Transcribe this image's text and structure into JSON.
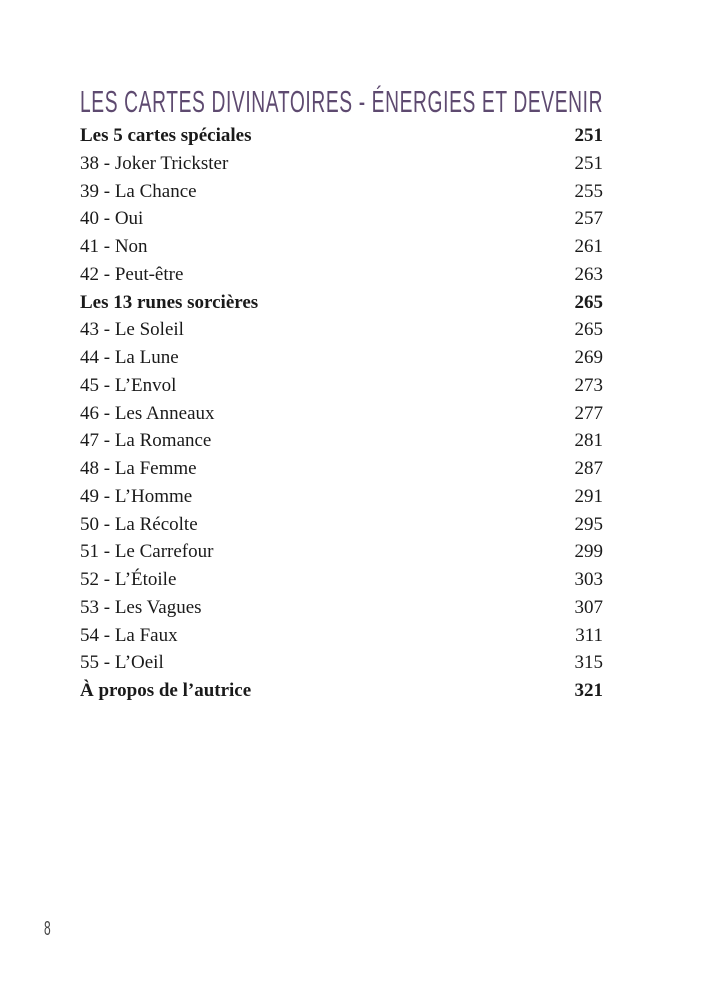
{
  "title": "Les cartes divinatoires - Énergies et devenir",
  "entries": [
    {
      "label": "Les 5 cartes spéciales",
      "page": "251",
      "bold": true
    },
    {
      "label": "38 - Joker Trickster",
      "page": "251"
    },
    {
      "label": "39 - La Chance",
      "page": "255"
    },
    {
      "label": "40 - Oui",
      "page": "257"
    },
    {
      "label": "41 - Non",
      "page": "261"
    },
    {
      "label": "42 - Peut-être",
      "page": "263"
    },
    {
      "label": "Les 13 runes sorcières",
      "page": "265",
      "bold": true
    },
    {
      "label": "43 - Le Soleil",
      "page": "265"
    },
    {
      "label": "44 - La Lune",
      "page": "269"
    },
    {
      "label": "45 - L’Envol",
      "page": "273"
    },
    {
      "label": "46 - Les Anneaux",
      "page": "277"
    },
    {
      "label": "47 - La Romance",
      "page": "281"
    },
    {
      "label": "48 - La Femme",
      "page": "287"
    },
    {
      "label": "49 - L’Homme",
      "page": "291"
    },
    {
      "label": "50 - La Récolte",
      "page": "295"
    },
    {
      "label": "51 - Le Carrefour",
      "page": "299"
    },
    {
      "label": "52 - L’Étoile",
      "page": "303"
    },
    {
      "label": "53 - Les Vagues",
      "page": "307"
    },
    {
      "label": "54 - La Faux",
      "page": "311"
    },
    {
      "label": "55 - L’Oeil",
      "page": "315"
    },
    {
      "label": "À propos de l’autrice",
      "page": "321",
      "bold": true
    }
  ],
  "page_number": "8",
  "colors": {
    "title": "#5e4a70",
    "text": "#1a1a1a"
  }
}
